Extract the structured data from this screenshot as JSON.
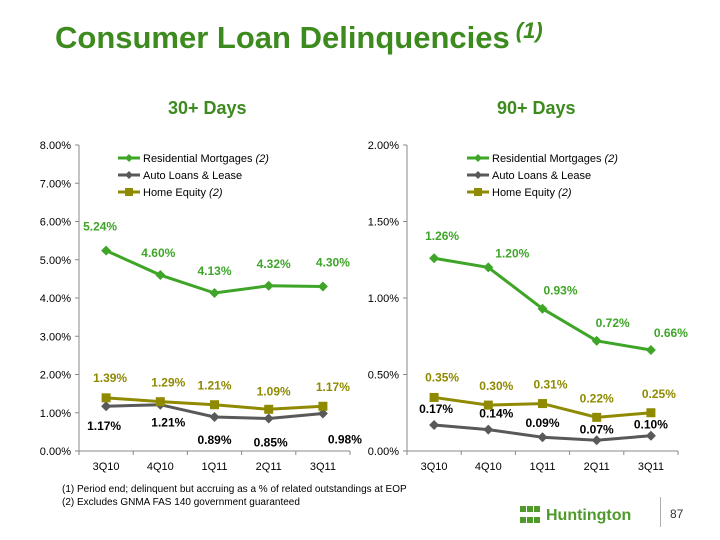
{
  "title": "Consumer Loan Delinquencies",
  "title_footnote": "(1)",
  "chart_data": [
    {
      "type": "line",
      "title": "30+ Days",
      "categories": [
        "3Q10",
        "4Q10",
        "1Q11",
        "2Q11",
        "3Q11"
      ],
      "ylim": [
        0,
        8
      ],
      "y_ticks": [
        "0.00%",
        "1.00%",
        "2.00%",
        "3.00%",
        "4.00%",
        "5.00%",
        "6.00%",
        "7.00%",
        "8.00%"
      ],
      "legend_position": "top-left",
      "series": [
        {
          "name": "Residential Mortgages",
          "legend_note": "(2)",
          "color": "#3ea528",
          "marker": "diamond",
          "values": [
            5.24,
            4.6,
            4.13,
            4.32,
            4.3
          ],
          "labels": [
            "5.24%",
            "4.60%",
            "4.13%",
            "4.32%",
            "4.30%"
          ]
        },
        {
          "name": "Auto Loans & Lease",
          "legend_note": "",
          "color": "#595959",
          "marker": "diamond",
          "values": [
            1.17,
            1.21,
            0.89,
            0.85,
            0.98
          ],
          "labels": [
            "1.17%",
            "1.21%",
            "0.89%",
            "0.85%",
            "0.98%"
          ]
        },
        {
          "name": "Home Equity",
          "legend_note": "(2)",
          "color": "#8f8a00",
          "marker": "square",
          "values": [
            1.39,
            1.29,
            1.21,
            1.09,
            1.17
          ],
          "labels": [
            "1.39%",
            "1.29%",
            "1.21%",
            "1.09%",
            "1.17%"
          ]
        }
      ]
    },
    {
      "type": "line",
      "title": "90+ Days",
      "categories": [
        "3Q10",
        "4Q10",
        "1Q11",
        "2Q11",
        "3Q11"
      ],
      "ylim": [
        0,
        2
      ],
      "y_ticks": [
        "0.00%",
        "0.50%",
        "1.00%",
        "1.50%",
        "2.00%"
      ],
      "legend_position": "top-left",
      "series": [
        {
          "name": "Residential Mortgages",
          "legend_note": "(2)",
          "color": "#3ea528",
          "marker": "diamond",
          "values": [
            1.26,
            1.2,
            0.93,
            0.72,
            0.66
          ],
          "labels": [
            "1.26%",
            "1.20%",
            "0.93%",
            "0.72%",
            "0.66%"
          ]
        },
        {
          "name": "Auto Loans & Lease",
          "legend_note": "",
          "color": "#595959",
          "marker": "diamond",
          "values": [
            0.17,
            0.14,
            0.09,
            0.07,
            0.1
          ],
          "labels": [
            "0.17%",
            "0.14%",
            "0.09%",
            "0.07%",
            "0.10%"
          ]
        },
        {
          "name": "Home Equity",
          "legend_note": "(2)",
          "color": "#8f8a00",
          "marker": "square",
          "values": [
            0.35,
            0.3,
            0.31,
            0.22,
            0.25
          ],
          "labels": [
            "0.35%",
            "0.30%",
            "0.31%",
            "0.22%",
            "0.25%"
          ]
        }
      ]
    }
  ],
  "footnotes": [
    "(1)  Period end; delinquent but accruing as a % of related outstandings at EOP",
    "(2)  Excludes GNMA FAS 140 government guaranteed"
  ],
  "logo_text": "Huntington",
  "page_number": "87"
}
